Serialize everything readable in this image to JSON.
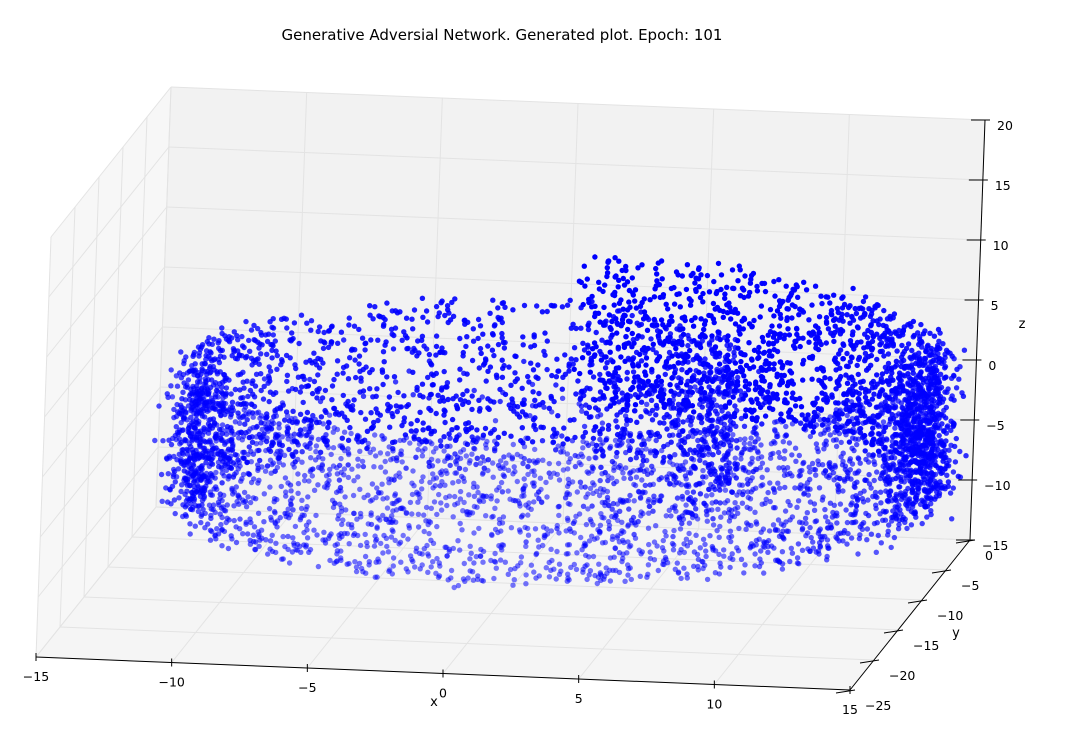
{
  "chart_data": {
    "type": "scatter",
    "projection": "3d",
    "title": "Generative Adversial Network. Generated plot. Epoch: 101",
    "xlabel": "x",
    "ylabel": "y",
    "zlabel": "z",
    "xlim": [
      -15,
      15
    ],
    "ylim": [
      -25,
      0
    ],
    "zlim": [
      -15,
      20
    ],
    "xticks": [
      "−15",
      "−10",
      "−5",
      "0",
      "5",
      "10",
      "15"
    ],
    "yticks": [
      "0",
      "−5",
      "−10",
      "−15",
      "−20",
      "−25"
    ],
    "zticks": [
      "20",
      "15",
      "10",
      "5",
      "0",
      "−5",
      "−10",
      "−15"
    ],
    "grid": true,
    "marker_color": "#0000ff",
    "pane_color": "#f2f2f2",
    "grid_color": "#e3e3e3",
    "series": [
      {
        "shape": "swiss-roll",
        "approx_point_count": 6000,
        "x_range": [
          -13,
          14
        ],
        "y_range": [
          -24,
          -1
        ],
        "z_range": [
          -10,
          15
        ]
      }
    ]
  }
}
